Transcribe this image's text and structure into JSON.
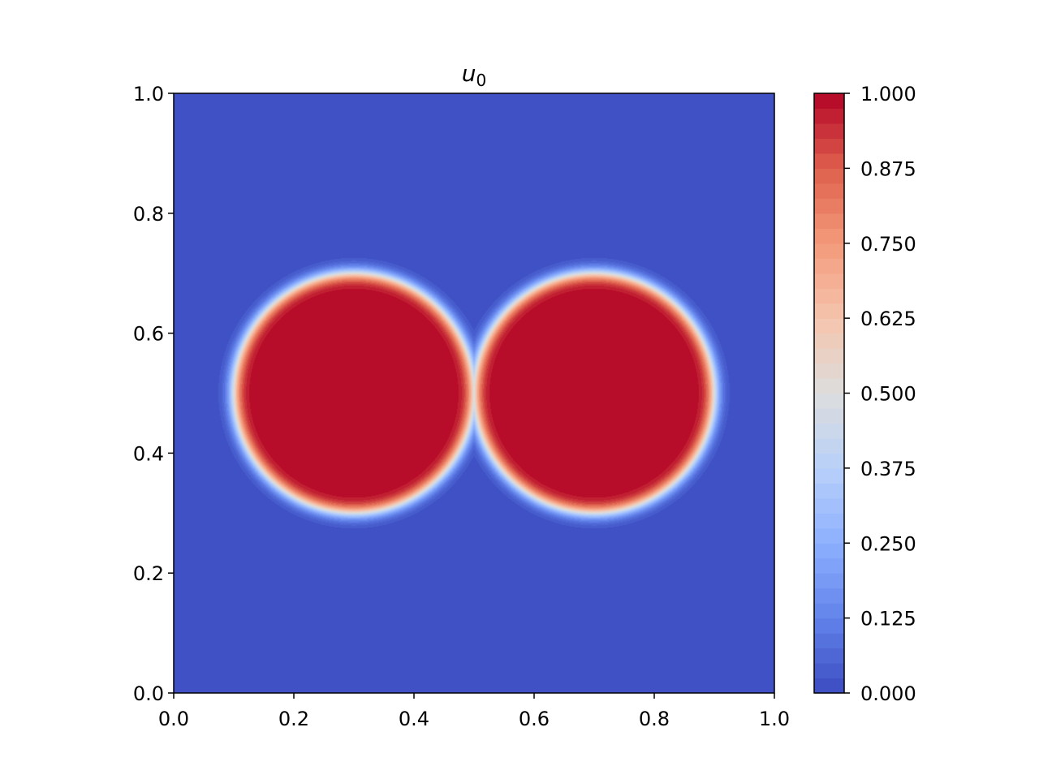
{
  "chart_data": {
    "type": "heatmap",
    "title": "u",
    "title_subscript": "0",
    "xlabel": "",
    "ylabel": "",
    "xlim": [
      0.0,
      1.0
    ],
    "ylim": [
      0.0,
      1.0
    ],
    "x_ticks": [
      "0.0",
      "0.2",
      "0.4",
      "0.6",
      "0.8",
      "1.0"
    ],
    "y_ticks": [
      "0.0",
      "0.2",
      "0.4",
      "0.6",
      "0.8",
      "1.0"
    ],
    "field": {
      "description_kind": "two circular regions (value 1) on background (value 0) with smooth interface",
      "circles": [
        {
          "cx": 0.3,
          "cy": 0.5,
          "r": 0.2
        },
        {
          "cx": 0.7,
          "cy": 0.5,
          "r": 0.2
        }
      ],
      "value_inside": 1.0,
      "value_outside": 0.0,
      "interface_width": 0.02
    },
    "colorbar": {
      "min": 0.0,
      "max": 1.0,
      "ticks": [
        "0.000",
        "0.125",
        "0.250",
        "0.375",
        "0.500",
        "0.625",
        "0.750",
        "0.875",
        "1.000"
      ],
      "levels": 40,
      "colormap": "coolwarm"
    },
    "grid": false
  },
  "colors": {
    "low": "#3b4cc0",
    "mid": "#dddddd",
    "high": "#b40426"
  }
}
